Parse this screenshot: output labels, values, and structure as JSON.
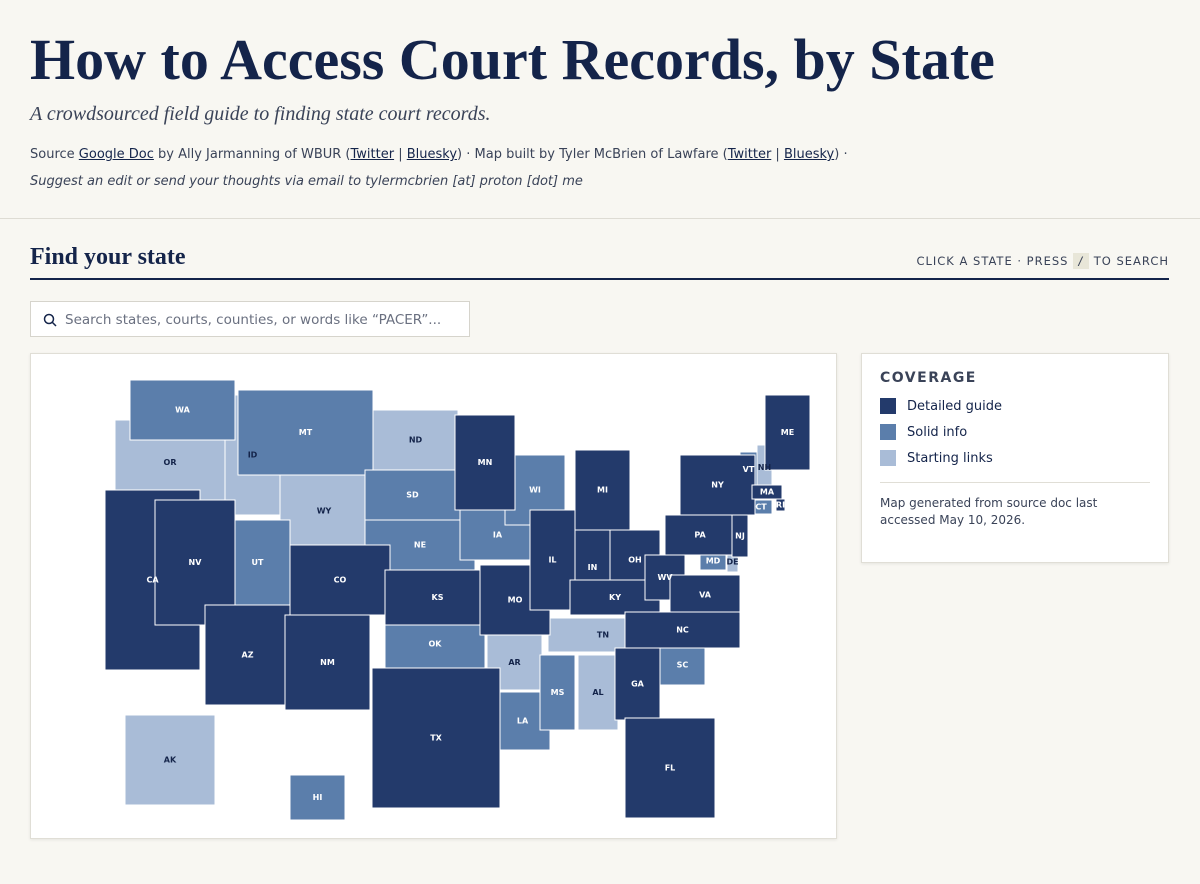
{
  "header": {
    "title": "How to Access Court Records, by State",
    "subtitle": "A crowdsourced field guide to finding state court records.",
    "source": [
      {
        "text": "Source ",
        "link": false
      },
      {
        "text": "Google Doc",
        "link": true
      },
      {
        "text": " by Ally Jarmanning of WBUR (",
        "link": false
      },
      {
        "text": "Twitter",
        "link": true
      },
      {
        "text": " | ",
        "link": false
      },
      {
        "text": "Bluesky",
        "link": true
      },
      {
        "text": ") · Map built by Tyler McBrien of Lawfare (",
        "link": false
      },
      {
        "text": "Twitter",
        "link": true
      },
      {
        "text": " | ",
        "link": false
      },
      {
        "text": "Bluesky",
        "link": true
      },
      {
        "text": ") ·",
        "link": false
      }
    ],
    "suggest": "Suggest an edit or send your thoughts via email to tylermcbrien [at] proton [dot] me"
  },
  "section": {
    "title": "Find your state",
    "hint_before": "CLICK A STATE · PRESS",
    "hint_key": "/",
    "hint_after": "TO SEARCH"
  },
  "search": {
    "placeholder": "Search states, courts, counties, or words like “PACER”..."
  },
  "legend": {
    "title": "COVERAGE",
    "items": [
      {
        "label": "Detailed guide",
        "color": "#233a6b",
        "states": [
          "CA",
          "NV",
          "AZ",
          "NM",
          "CO",
          "KS",
          "TX",
          "MN",
          "MO",
          "IL",
          "IN",
          "MI",
          "OH",
          "KY",
          "WV",
          "VA",
          "NC",
          "GA",
          "FL",
          "PA",
          "NY",
          "NJ",
          "ME",
          "MA",
          "RI"
        ]
      },
      {
        "label": "Solid info",
        "color": "#5b7eab",
        "states": [
          "WA",
          "MT",
          "SD",
          "NE",
          "UT",
          "IA",
          "WI",
          "OK",
          "LA",
          "MS",
          "SC",
          "VT",
          "CT",
          "MD",
          "HI"
        ]
      },
      {
        "label": "Starting links",
        "color": "#a9bcd7",
        "states": [
          "OR",
          "ID",
          "WY",
          "ND",
          "AR",
          "TN",
          "AL",
          "AK",
          "NH",
          "DE"
        ]
      }
    ],
    "note": "Map generated from source doc last accessed May 10, 2026."
  }
}
